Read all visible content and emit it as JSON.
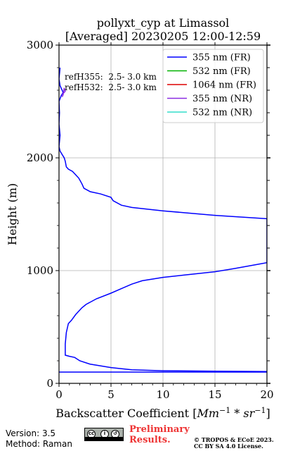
{
  "chart_data": {
    "type": "line",
    "title": "pollyxt_cyp at Limassol",
    "subtitle": "[Averaged] 20230205 12:00-12:59",
    "xlabel": "Backscatter Coefficient [Mm⁻¹ * sr⁻¹]",
    "ylabel": "Height (m)",
    "xlim": [
      0,
      20
    ],
    "ylim": [
      0,
      3000
    ],
    "xticks": [
      "0",
      "5",
      "10",
      "15",
      "20"
    ],
    "yticks": [
      "0",
      "1000",
      "2000",
      "3000"
    ],
    "grid": true,
    "legend_position": "top-right",
    "annotations": [
      "refH355:  2.5- 3.0 km",
      "refH532:  2.5- 3.0 km"
    ],
    "series": [
      {
        "name": "355 nm (FR)",
        "color": "#0000ff",
        "points": [
          [
            20,
            105
          ],
          [
            15,
            108
          ],
          [
            10,
            112
          ],
          [
            7,
            120
          ],
          [
            5,
            140
          ],
          [
            3,
            170
          ],
          [
            2,
            200
          ],
          [
            1.5,
            230
          ],
          [
            1.0,
            240
          ],
          [
            0.6,
            250
          ],
          [
            0.6,
            350
          ],
          [
            0.7,
            450
          ],
          [
            0.9,
            530
          ],
          [
            1.2,
            560
          ],
          [
            1.6,
            610
          ],
          [
            2.2,
            670
          ],
          [
            2.6,
            700
          ],
          [
            3.6,
            750
          ],
          [
            5,
            800
          ],
          [
            6,
            840
          ],
          [
            7,
            880
          ],
          [
            8,
            910
          ],
          [
            10,
            940
          ],
          [
            12,
            960
          ],
          [
            15,
            990
          ],
          [
            17,
            1020
          ],
          [
            20,
            1070
          ],
          [
            20,
            1460
          ],
          [
            15,
            1490
          ],
          [
            10,
            1530
          ],
          [
            7,
            1560
          ],
          [
            6,
            1580
          ],
          [
            5.2,
            1620
          ],
          [
            5,
            1650
          ],
          [
            4,
            1680
          ],
          [
            3,
            1700
          ],
          [
            2.4,
            1730
          ],
          [
            2.2,
            1770
          ],
          [
            1.9,
            1820
          ],
          [
            1.6,
            1850
          ],
          [
            1.3,
            1880
          ],
          [
            0.9,
            1900
          ],
          [
            0.7,
            1920
          ],
          [
            0.6,
            1970
          ],
          [
            0.5,
            2000
          ],
          [
            0.3,
            2030
          ],
          [
            0.1,
            2060
          ],
          [
            0.0,
            2100
          ],
          [
            0.1,
            2200
          ],
          [
            0.0,
            2300
          ],
          [
            0.05,
            2400
          ],
          [
            0.0,
            2500
          ],
          [
            0.2,
            2550
          ],
          [
            0.4,
            2580
          ],
          [
            0.1,
            2640
          ],
          [
            0.0,
            2700
          ],
          [
            0.1,
            2800
          ]
        ]
      },
      {
        "name": "532 nm (FR)",
        "color": "#00b200",
        "points": []
      },
      {
        "name": "1064 nm (FR)",
        "color": "#dd0000",
        "points": []
      },
      {
        "name": "355 nm (NR)",
        "color": "#8a2be2",
        "points": [
          [
            0.3,
            2560
          ],
          [
            0.6,
            2590
          ],
          [
            0.5,
            2620
          ],
          [
            0.4,
            2560
          ],
          [
            0.3,
            2540
          ]
        ]
      },
      {
        "name": "532 nm (NR)",
        "color": "#33ddcc",
        "points": []
      }
    ],
    "baseline_line": {
      "y": 100,
      "color": "#0000ff"
    }
  },
  "footer": {
    "version": "Version: 3.5",
    "method": "Method: Raman",
    "preliminary_line1": "Preliminary",
    "preliminary_line2": "Results.",
    "license_line1": "© TROPOS & ECoE 2023.",
    "license_line2": "CC BY SA 4.0 License."
  }
}
